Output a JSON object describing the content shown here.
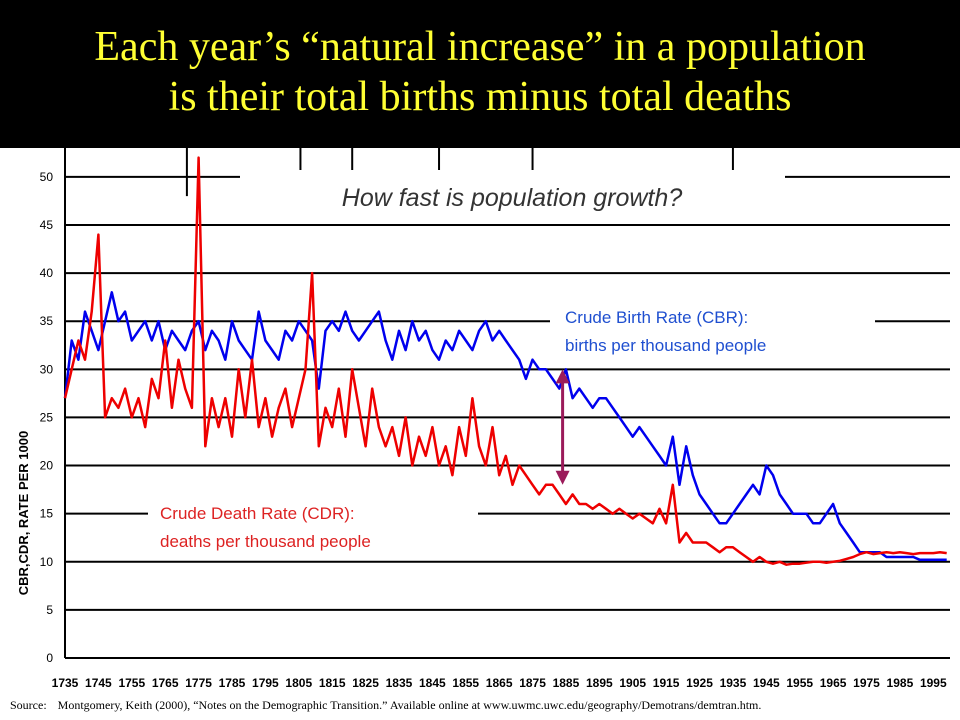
{
  "slide": {
    "title_line1": "Each year’s “natural increase” in a population",
    "title_line2": "is their total births minus total deaths",
    "source_label": "Source:",
    "source_text": "Montgomery, Keith (2000), “Notes on the Demographic Transition.”  Available online at www.uwmc.uwc.edu/geography/Demotrans/demtran.htm."
  },
  "chart_data": {
    "type": "line",
    "title": "How fast is population growth?",
    "ylabel": "CBR,CDR, RATE PER 1000",
    "xlabel": "",
    "xlim": [
      1735,
      2000
    ],
    "ylim": [
      0,
      53
    ],
    "grid": true,
    "x_ticks": [
      1735,
      1745,
      1755,
      1765,
      1775,
      1785,
      1795,
      1805,
      1815,
      1825,
      1835,
      1845,
      1855,
      1865,
      1875,
      1885,
      1895,
      1905,
      1915,
      1925,
      1935,
      1945,
      1955,
      1965,
      1975,
      1985,
      1995
    ],
    "y_ticks": [
      0,
      5,
      10,
      15,
      20,
      25,
      30,
      35,
      40,
      45,
      50
    ],
    "annotations": [
      {
        "line1": "Crude Birth Rate (CBR):",
        "line2": "births per thousand people",
        "color": "#1f4fd0"
      },
      {
        "line1": "Crude Death Rate (CDR):",
        "line2": "deaths per thousand people",
        "color": "#dd2222"
      }
    ],
    "arrow": {
      "x": 1884,
      "y_top": 30,
      "y_bottom": 18,
      "color": "#9b1b5a"
    },
    "series": [
      {
        "color": "#0000ee",
        "x": [
          1735,
          1737,
          1739,
          1741,
          1743,
          1745,
          1747,
          1749,
          1751,
          1753,
          1755,
          1757,
          1759,
          1761,
          1763,
          1765,
          1767,
          1769,
          1771,
          1773,
          1775,
          1777,
          1779,
          1781,
          1783,
          1785,
          1787,
          1789,
          1791,
          1793,
          1795,
          1797,
          1799,
          1801,
          1803,
          1805,
          1807,
          1809,
          1811,
          1813,
          1815,
          1817,
          1819,
          1821,
          1823,
          1825,
          1827,
          1829,
          1831,
          1833,
          1835,
          1837,
          1839,
          1841,
          1843,
          1845,
          1847,
          1849,
          1851,
          1853,
          1855,
          1857,
          1859,
          1861,
          1863,
          1865,
          1867,
          1869,
          1871,
          1873,
          1875,
          1877,
          1879,
          1881,
          1883,
          1885,
          1887,
          1889,
          1891,
          1893,
          1895,
          1897,
          1899,
          1901,
          1903,
          1905,
          1907,
          1909,
          1911,
          1913,
          1915,
          1917,
          1919,
          1921,
          1923,
          1925,
          1927,
          1929,
          1931,
          1933,
          1935,
          1937,
          1939,
          1941,
          1943,
          1945,
          1947,
          1949,
          1951,
          1953,
          1955,
          1957,
          1959,
          1961,
          1963,
          1965,
          1967,
          1969,
          1971,
          1973,
          1975,
          1977,
          1979,
          1981,
          1983,
          1985,
          1987,
          1989,
          1991,
          1993,
          1995,
          1997,
          1999
        ],
        "values": [
          27,
          33,
          31,
          36,
          34,
          32,
          35,
          38,
          35,
          36,
          33,
          34,
          35,
          33,
          35,
          32,
          34,
          33,
          32,
          34,
          35,
          32,
          34,
          33,
          31,
          35,
          33,
          32,
          31,
          36,
          33,
          32,
          31,
          34,
          33,
          35,
          34,
          33,
          28,
          34,
          35,
          34,
          36,
          34,
          33,
          34,
          35,
          36,
          33,
          31,
          34,
          32,
          35,
          33,
          34,
          32,
          31,
          33,
          32,
          34,
          33,
          32,
          34,
          35,
          33,
          34,
          33,
          32,
          31,
          29,
          31,
          30,
          30,
          29,
          28,
          30,
          27,
          28,
          27,
          26,
          27,
          27,
          26,
          25,
          24,
          23,
          24,
          23,
          22,
          21,
          20,
          23,
          18,
          22,
          19,
          17,
          16,
          15,
          14,
          14,
          15,
          16,
          17,
          18,
          17,
          20,
          19,
          17,
          16,
          15,
          15,
          15,
          14,
          14,
          15,
          16,
          14,
          13,
          12,
          11,
          11,
          11,
          11,
          10.5,
          10.5,
          10.5,
          10.5,
          10.5,
          10.2,
          10.2,
          10.2,
          10.2,
          10.2
        ]
      },
      {
        "color": "#ee0000",
        "x": [
          1735,
          1737,
          1739,
          1741,
          1743,
          1745,
          1747,
          1749,
          1751,
          1753,
          1755,
          1757,
          1759,
          1761,
          1763,
          1765,
          1767,
          1769,
          1771,
          1773,
          1775,
          1777,
          1779,
          1781,
          1783,
          1785,
          1787,
          1789,
          1791,
          1793,
          1795,
          1797,
          1799,
          1801,
          1803,
          1805,
          1807,
          1809,
          1811,
          1813,
          1815,
          1817,
          1819,
          1821,
          1823,
          1825,
          1827,
          1829,
          1831,
          1833,
          1835,
          1837,
          1839,
          1841,
          1843,
          1845,
          1847,
          1849,
          1851,
          1853,
          1855,
          1857,
          1859,
          1861,
          1863,
          1865,
          1867,
          1869,
          1871,
          1873,
          1875,
          1877,
          1879,
          1881,
          1883,
          1885,
          1887,
          1889,
          1891,
          1893,
          1895,
          1897,
          1899,
          1901,
          1903,
          1905,
          1907,
          1909,
          1911,
          1913,
          1915,
          1917,
          1919,
          1921,
          1923,
          1925,
          1927,
          1929,
          1931,
          1933,
          1935,
          1937,
          1939,
          1941,
          1943,
          1945,
          1947,
          1949,
          1951,
          1953,
          1955,
          1957,
          1959,
          1961,
          1963,
          1965,
          1967,
          1969,
          1971,
          1973,
          1975,
          1977,
          1979,
          1981,
          1983,
          1985,
          1987,
          1989,
          1991,
          1993,
          1995,
          1997,
          1999
        ],
        "values": [
          27,
          30,
          33,
          31,
          36,
          44,
          25,
          27,
          26,
          28,
          25,
          27,
          24,
          29,
          27,
          33,
          26,
          31,
          28,
          26,
          52,
          22,
          27,
          24,
          27,
          23,
          30,
          25,
          31,
          24,
          27,
          23,
          26,
          28,
          24,
          27,
          30,
          40,
          22,
          26,
          24,
          28,
          23,
          30,
          26,
          22,
          28,
          24,
          22,
          24,
          21,
          25,
          20,
          23,
          21,
          24,
          20,
          22,
          19,
          24,
          21,
          27,
          22,
          20,
          24,
          19,
          21,
          18,
          20,
          19,
          18,
          17,
          18,
          18,
          17,
          16,
          17,
          16,
          16,
          15.5,
          16,
          15.5,
          15,
          15.5,
          15,
          14.5,
          15,
          14.5,
          14,
          15.5,
          14,
          18,
          12,
          13,
          12,
          12,
          12,
          11.5,
          11,
          11.5,
          11.5,
          11,
          10.5,
          10,
          10.5,
          10,
          9.8,
          10,
          9.7,
          9.8,
          9.8,
          9.9,
          10,
          10,
          9.9,
          10,
          10.1,
          10.3,
          10.5,
          10.8,
          11,
          10.8,
          10.9,
          11,
          10.9,
          11,
          10.9,
          10.8,
          10.9,
          10.9,
          10.9,
          11,
          10.9
        ]
      }
    ]
  }
}
